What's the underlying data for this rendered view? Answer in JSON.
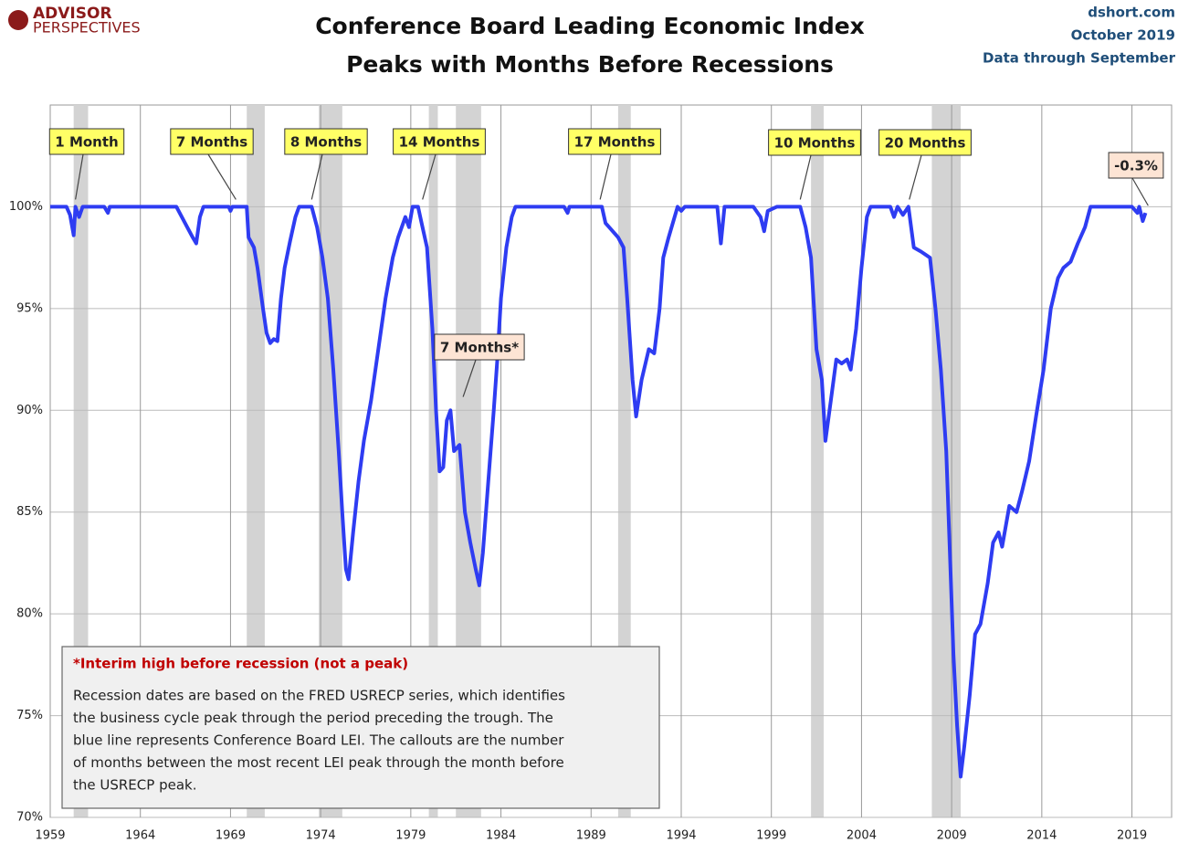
{
  "chart_data": {
    "type": "line",
    "logo": [
      "ADVISOR",
      "PERSPECTIVES"
    ],
    "title": [
      "Conference Board Leading Economic Index",
      "Peaks with Months Before Recessions"
    ],
    "source": [
      "dshort.com",
      "October 2019",
      "Data through September"
    ],
    "color": "#2e3cf2",
    "recession_color": "#d3d3d3",
    "recessions": [
      [
        1960.3,
        1961.1
      ],
      [
        1969.9,
        1970.9
      ],
      [
        1973.9,
        1975.2
      ],
      [
        1980.0,
        1980.5
      ],
      [
        1981.5,
        1982.9
      ],
      [
        1990.5,
        1991.2
      ],
      [
        2001.2,
        2001.9
      ],
      [
        2007.9,
        2009.5
      ]
    ],
    "x": [
      1959.0,
      1959.9,
      1960.1,
      1960.3,
      1960.4,
      1960.6,
      1960.8,
      1962.0,
      1962.2,
      1962.3,
      1966.0,
      1966.3,
      1966.6,
      1966.9,
      1967.1,
      1967.3,
      1967.5,
      1968.9,
      1969.0,
      1969.1,
      1969.9,
      1970.0,
      1970.3,
      1970.5,
      1970.8,
      1971.0,
      1971.2,
      1971.4,
      1971.6,
      1971.8,
      1972.0,
      1972.3,
      1972.6,
      1972.8,
      1973.5,
      1973.8,
      1974.1,
      1974.4,
      1974.7,
      1975.0,
      1975.2,
      1975.4,
      1975.55,
      1975.8,
      1976.1,
      1976.4,
      1976.8,
      1977.2,
      1977.6,
      1978.0,
      1978.3,
      1978.7,
      1978.9,
      1979.1,
      1979.4,
      1979.6,
      1979.9,
      1980.2,
      1980.4,
      1980.6,
      1980.8,
      1981.0,
      1981.2,
      1981.4,
      1981.7,
      1982.0,
      1982.3,
      1982.6,
      1982.8,
      1983.0,
      1983.3,
      1983.6,
      1983.8,
      1984.0,
      1984.3,
      1984.6,
      1984.8,
      1987.5,
      1987.7,
      1987.8,
      1989.6,
      1989.8,
      1990.0,
      1990.5,
      1990.8,
      1991.0,
      1991.3,
      1991.5,
      1991.8,
      1992.2,
      1992.5,
      1992.8,
      1993.0,
      1993.3,
      1993.8,
      1994.0,
      1994.2,
      1996.0,
      1996.2,
      1996.4,
      1998.0,
      1998.4,
      1998.6,
      1998.8,
      1999.3,
      2000.6,
      2000.9,
      2001.2,
      2001.5,
      2001.8,
      2002.0,
      2002.3,
      2002.6,
      2002.9,
      2003.2,
      2003.4,
      2003.7,
      2004.0,
      2004.3,
      2004.5,
      2005.6,
      2005.8,
      2006.0,
      2006.3,
      2006.6,
      2006.9,
      2007.3,
      2007.8,
      2008.1,
      2008.4,
      2008.7,
      2008.9,
      2009.1,
      2009.3,
      2009.5,
      2009.7,
      2010.0,
      2010.3,
      2010.6,
      2011.0,
      2011.3,
      2011.6,
      2011.8,
      2012.2,
      2012.6,
      2012.9,
      2013.3,
      2013.7,
      2014.1,
      2014.5,
      2014.9,
      2015.2,
      2015.6,
      2016.0,
      2016.4,
      2016.7,
      2019.0,
      2019.3,
      2019.4,
      2019.6,
      2019.75
    ],
    "values": [
      100,
      100,
      99.6,
      98.6,
      100,
      99.5,
      100,
      100,
      99.7,
      100,
      100,
      99.5,
      99,
      98.5,
      98.2,
      99.5,
      100,
      100,
      99.8,
      100,
      100,
      98.5,
      98,
      97,
      95,
      93.8,
      93.3,
      93.5,
      93.4,
      95.5,
      97,
      98.3,
      99.5,
      100,
      100,
      99,
      97.5,
      95.5,
      92,
      88,
      85,
      82.2,
      81.7,
      84,
      86.5,
      88.5,
      90.5,
      93,
      95.5,
      97.5,
      98.5,
      99.5,
      99,
      100,
      100,
      99.2,
      98,
      94,
      90,
      87,
      87.2,
      89.5,
      90,
      88,
      88.3,
      85,
      83.5,
      82.2,
      81.4,
      83,
      86.5,
      90,
      92.5,
      95.5,
      98,
      99.5,
      100,
      100,
      99.7,
      100,
      100,
      99.2,
      99,
      98.5,
      98,
      95.5,
      91.5,
      89.7,
      91.5,
      93,
      92.8,
      95,
      97.5,
      98.5,
      100,
      99.8,
      100,
      100,
      98.2,
      100,
      100,
      99.5,
      98.8,
      99.8,
      100,
      100,
      99,
      97.5,
      93,
      91.5,
      88.5,
      90.5,
      92.5,
      92.3,
      92.5,
      92,
      94,
      97,
      99.5,
      100,
      100,
      99.5,
      100,
      99.6,
      100,
      98,
      97.8,
      97.5,
      95,
      92,
      88,
      83,
      78,
      74.5,
      72,
      73.5,
      76,
      79,
      79.5,
      81.5,
      83.5,
      84,
      83.3,
      85.3,
      85,
      86,
      87.5,
      89.8,
      92,
      95,
      96.5,
      97,
      97.3,
      98.2,
      99,
      100,
      100,
      99.7,
      100,
      99.3,
      99.7
    ],
    "xlim": [
      1959,
      2021.2
    ],
    "xticks": [
      1959,
      1964,
      1969,
      1974,
      1979,
      1984,
      1989,
      1994,
      1999,
      2004,
      2009,
      2014,
      2019
    ],
    "ylim": [
      70,
      105
    ],
    "yticks": [
      {
        "value": 70,
        "label": "70%"
      },
      {
        "value": 75,
        "label": "75%"
      },
      {
        "value": 80,
        "label": "80%"
      },
      {
        "value": 85,
        "label": "85%"
      },
      {
        "value": 90,
        "label": "90%"
      },
      {
        "value": 95,
        "label": "95%"
      },
      {
        "value": 100,
        "label": "100%"
      }
    ],
    "grid": true,
    "annotations": [
      {
        "text": "1 Month",
        "x": 1960.4,
        "y": 100,
        "fill": "#ffff66",
        "text_color": "#000000"
      },
      {
        "text": "7 Months",
        "x": 1969.3,
        "y": 100,
        "fill": "#ffff66",
        "text_color": "#000000"
      },
      {
        "text": "8 Months",
        "x": 1973.5,
        "y": 100,
        "fill": "#ffff66",
        "text_color": "#000000"
      },
      {
        "text": "14 Months",
        "x": 1979.65,
        "y": 100,
        "fill": "#ffff66",
        "text_color": "#000000"
      },
      {
        "text": "17 Months",
        "x": 1989.5,
        "y": 100,
        "fill": "#ffff66",
        "text_color": "#000000"
      },
      {
        "text": "10 Months",
        "x": 2000.6,
        "y": 100,
        "fill": "#ffff66",
        "text_color": "#000000"
      },
      {
        "text": "20 Months",
        "x": 2006.65,
        "y": 100,
        "fill": "#ffff66",
        "text_color": "#000000"
      },
      {
        "text": "-0.3%",
        "x": 2019.9,
        "y": 99.7,
        "fill": "#fde4d4",
        "text_color": "#000000"
      },
      {
        "text": "7 Months*",
        "x": 1981.9,
        "y": 90.3,
        "fill": "#fde4d4",
        "text_color": "#c00000"
      }
    ],
    "note": {
      "heading": "*Interim high before recession (not a peak)",
      "lines": [
        "Recession dates are based on the FRED USRECP series, which identifies",
        "the business cycle peak through the period preceding the trough. The",
        "blue line represents Conference Board LEI. The callouts are the number",
        "of months between the most recent LEI peak through the month  before",
        "the USRECP peak."
      ]
    }
  }
}
